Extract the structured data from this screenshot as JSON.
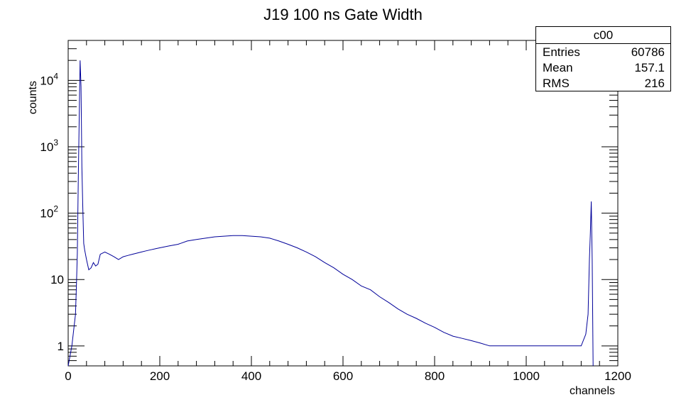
{
  "chart_data": {
    "type": "line",
    "title": "J19 100 ns Gate Width",
    "xlabel": "channels",
    "ylabel": "counts",
    "xlim": [
      0,
      1200
    ],
    "ylim": [
      0.5,
      40000
    ],
    "yscale": "log",
    "grid": false,
    "line_color": "#000099",
    "x_ticks": [
      0,
      200,
      400,
      600,
      800,
      1000,
      1200
    ],
    "y_ticks": [
      {
        "value": 1,
        "label": "1"
      },
      {
        "value": 10,
        "label": "10"
      },
      {
        "value": 100,
        "label": "10",
        "exp": "2"
      },
      {
        "value": 1000,
        "label": "10",
        "exp": "3"
      },
      {
        "value": 10000,
        "label": "10",
        "exp": "4"
      }
    ],
    "series": [
      {
        "points": [
          [
            0,
            0
          ],
          [
            8,
            1
          ],
          [
            16,
            3
          ],
          [
            18,
            8
          ],
          [
            20,
            25
          ],
          [
            22,
            300
          ],
          [
            24,
            2500
          ],
          [
            26,
            20000
          ],
          [
            28,
            8000
          ],
          [
            30,
            500
          ],
          [
            32,
            120
          ],
          [
            34,
            35
          ],
          [
            36,
            28
          ],
          [
            40,
            20
          ],
          [
            45,
            14
          ],
          [
            50,
            15
          ],
          [
            55,
            18
          ],
          [
            60,
            16
          ],
          [
            65,
            17
          ],
          [
            70,
            24
          ],
          [
            80,
            26
          ],
          [
            90,
            24
          ],
          [
            100,
            22
          ],
          [
            110,
            20
          ],
          [
            120,
            22
          ],
          [
            130,
            23
          ],
          [
            140,
            24
          ],
          [
            150,
            25
          ],
          [
            160,
            26
          ],
          [
            170,
            27
          ],
          [
            180,
            28
          ],
          [
            190,
            29
          ],
          [
            200,
            30
          ],
          [
            220,
            32
          ],
          [
            240,
            34
          ],
          [
            260,
            38
          ],
          [
            280,
            40
          ],
          [
            300,
            42
          ],
          [
            320,
            44
          ],
          [
            340,
            45
          ],
          [
            360,
            46
          ],
          [
            380,
            46
          ],
          [
            400,
            45
          ],
          [
            420,
            44
          ],
          [
            440,
            42
          ],
          [
            460,
            38
          ],
          [
            480,
            34
          ],
          [
            500,
            30
          ],
          [
            520,
            26
          ],
          [
            540,
            22
          ],
          [
            560,
            18
          ],
          [
            580,
            15
          ],
          [
            600,
            12
          ],
          [
            620,
            10
          ],
          [
            640,
            8
          ],
          [
            660,
            7
          ],
          [
            680,
            5.5
          ],
          [
            700,
            4.5
          ],
          [
            720,
            3.6
          ],
          [
            740,
            3.0
          ],
          [
            760,
            2.6
          ],
          [
            780,
            2.2
          ],
          [
            800,
            1.9
          ],
          [
            820,
            1.6
          ],
          [
            840,
            1.4
          ],
          [
            860,
            1.3
          ],
          [
            880,
            1.2
          ],
          [
            900,
            1.1
          ],
          [
            920,
            1.0
          ],
          [
            940,
            1.0
          ],
          [
            960,
            1.0
          ],
          [
            980,
            1.0
          ],
          [
            1000,
            1.0
          ],
          [
            1020,
            1.0
          ],
          [
            1040,
            1.0
          ],
          [
            1060,
            1.0
          ],
          [
            1080,
            1.0
          ],
          [
            1100,
            1.0
          ],
          [
            1120,
            1.0
          ],
          [
            1130,
            1.5
          ],
          [
            1135,
            3
          ],
          [
            1138,
            20
          ],
          [
            1140,
            50
          ],
          [
            1142,
            150
          ],
          [
            1144,
            20
          ],
          [
            1146,
            0
          ]
        ]
      }
    ]
  },
  "stats_box": {
    "title": "c00",
    "rows": [
      {
        "label": "Entries",
        "value": "60786"
      },
      {
        "label": "Mean",
        "value": "157.1"
      },
      {
        "label": "RMS",
        "value": "216"
      }
    ]
  }
}
